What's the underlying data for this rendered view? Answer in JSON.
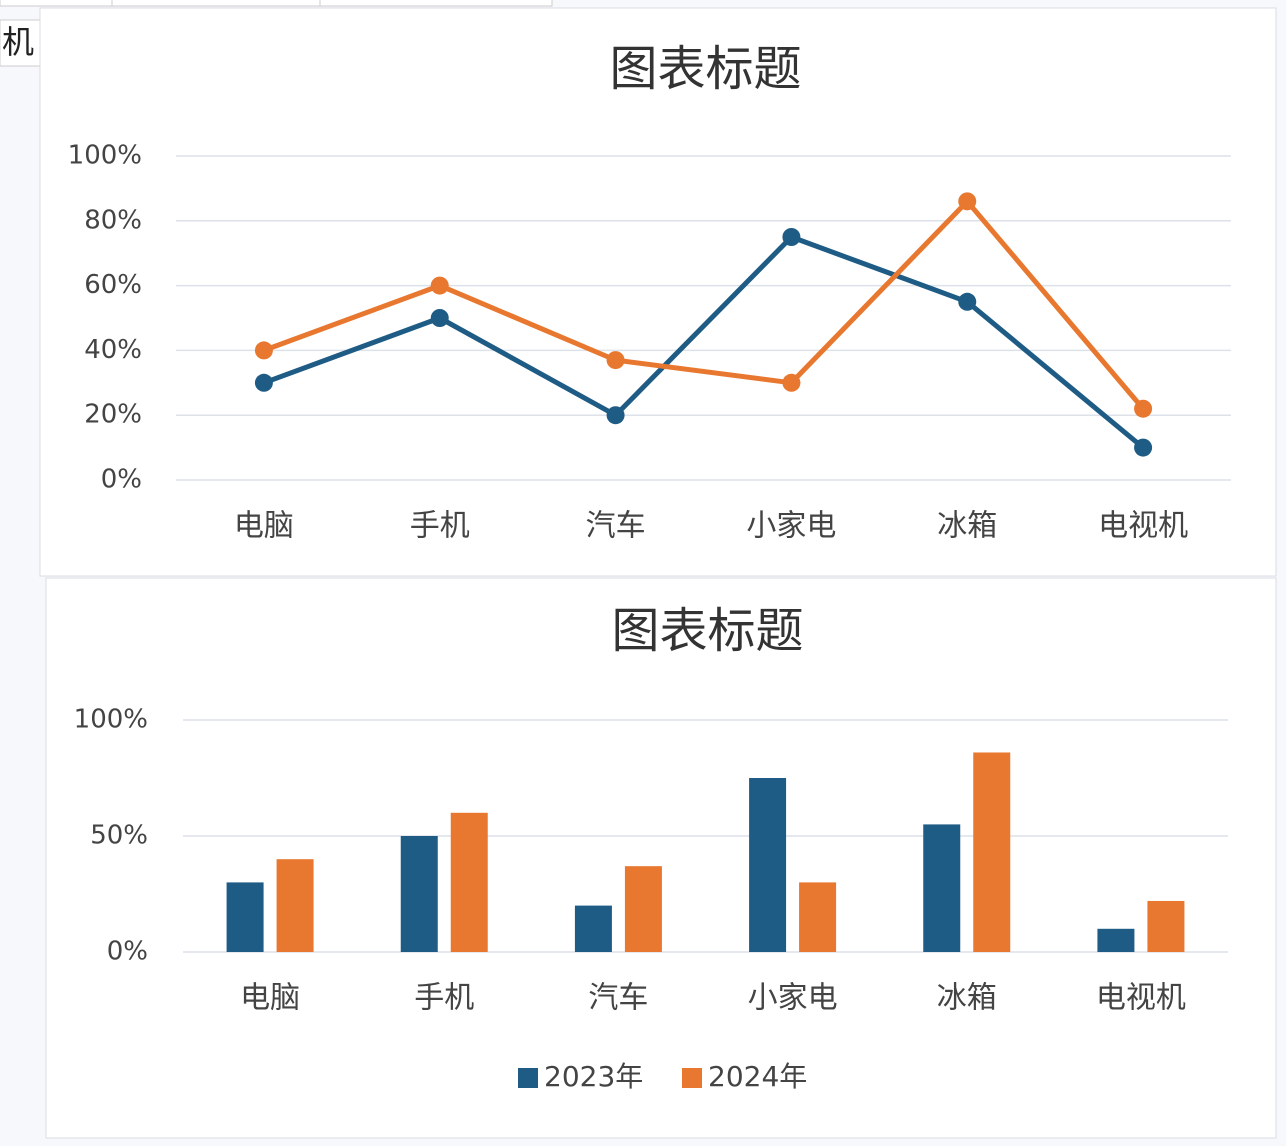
{
  "sheet_cell": "机",
  "chart_data": [
    {
      "type": "line",
      "title": "图表标题",
      "categories": [
        "电脑",
        "手机",
        "汽车",
        "小家电",
        "冰箱",
        "电视机"
      ],
      "series": [
        {
          "color": "#1f5c85",
          "values": [
            30,
            50,
            20,
            75,
            55,
            10
          ]
        },
        {
          "color": "#e8782f",
          "values": [
            40,
            60,
            37,
            30,
            86,
            22
          ]
        }
      ],
      "ylim": [
        0,
        100
      ],
      "yticks": [
        {
          "value": 0,
          "label": "0%"
        },
        {
          "value": 20,
          "label": "20%"
        },
        {
          "value": 40,
          "label": "40%"
        },
        {
          "value": 60,
          "label": "60%"
        },
        {
          "value": 80,
          "label": "80%"
        },
        {
          "value": 100,
          "label": "100%"
        }
      ],
      "grid": true
    },
    {
      "type": "bar",
      "title": "图表标题",
      "categories": [
        "电脑",
        "手机",
        "汽车",
        "小家电",
        "冰箱",
        "电视机"
      ],
      "series": [
        {
          "name": "2023年",
          "color": "#1f5c85",
          "values": [
            30,
            50,
            20,
            75,
            55,
            10
          ]
        },
        {
          "name": "2024年",
          "color": "#e8782f",
          "values": [
            40,
            60,
            37,
            30,
            86,
            22
          ]
        }
      ],
      "ylim": [
        0,
        100
      ],
      "yticks": [
        {
          "value": 0,
          "label": "0%"
        },
        {
          "value": 50,
          "label": "50%"
        },
        {
          "value": 100,
          "label": "100%"
        }
      ],
      "grid": true,
      "legend": "bottom"
    }
  ]
}
